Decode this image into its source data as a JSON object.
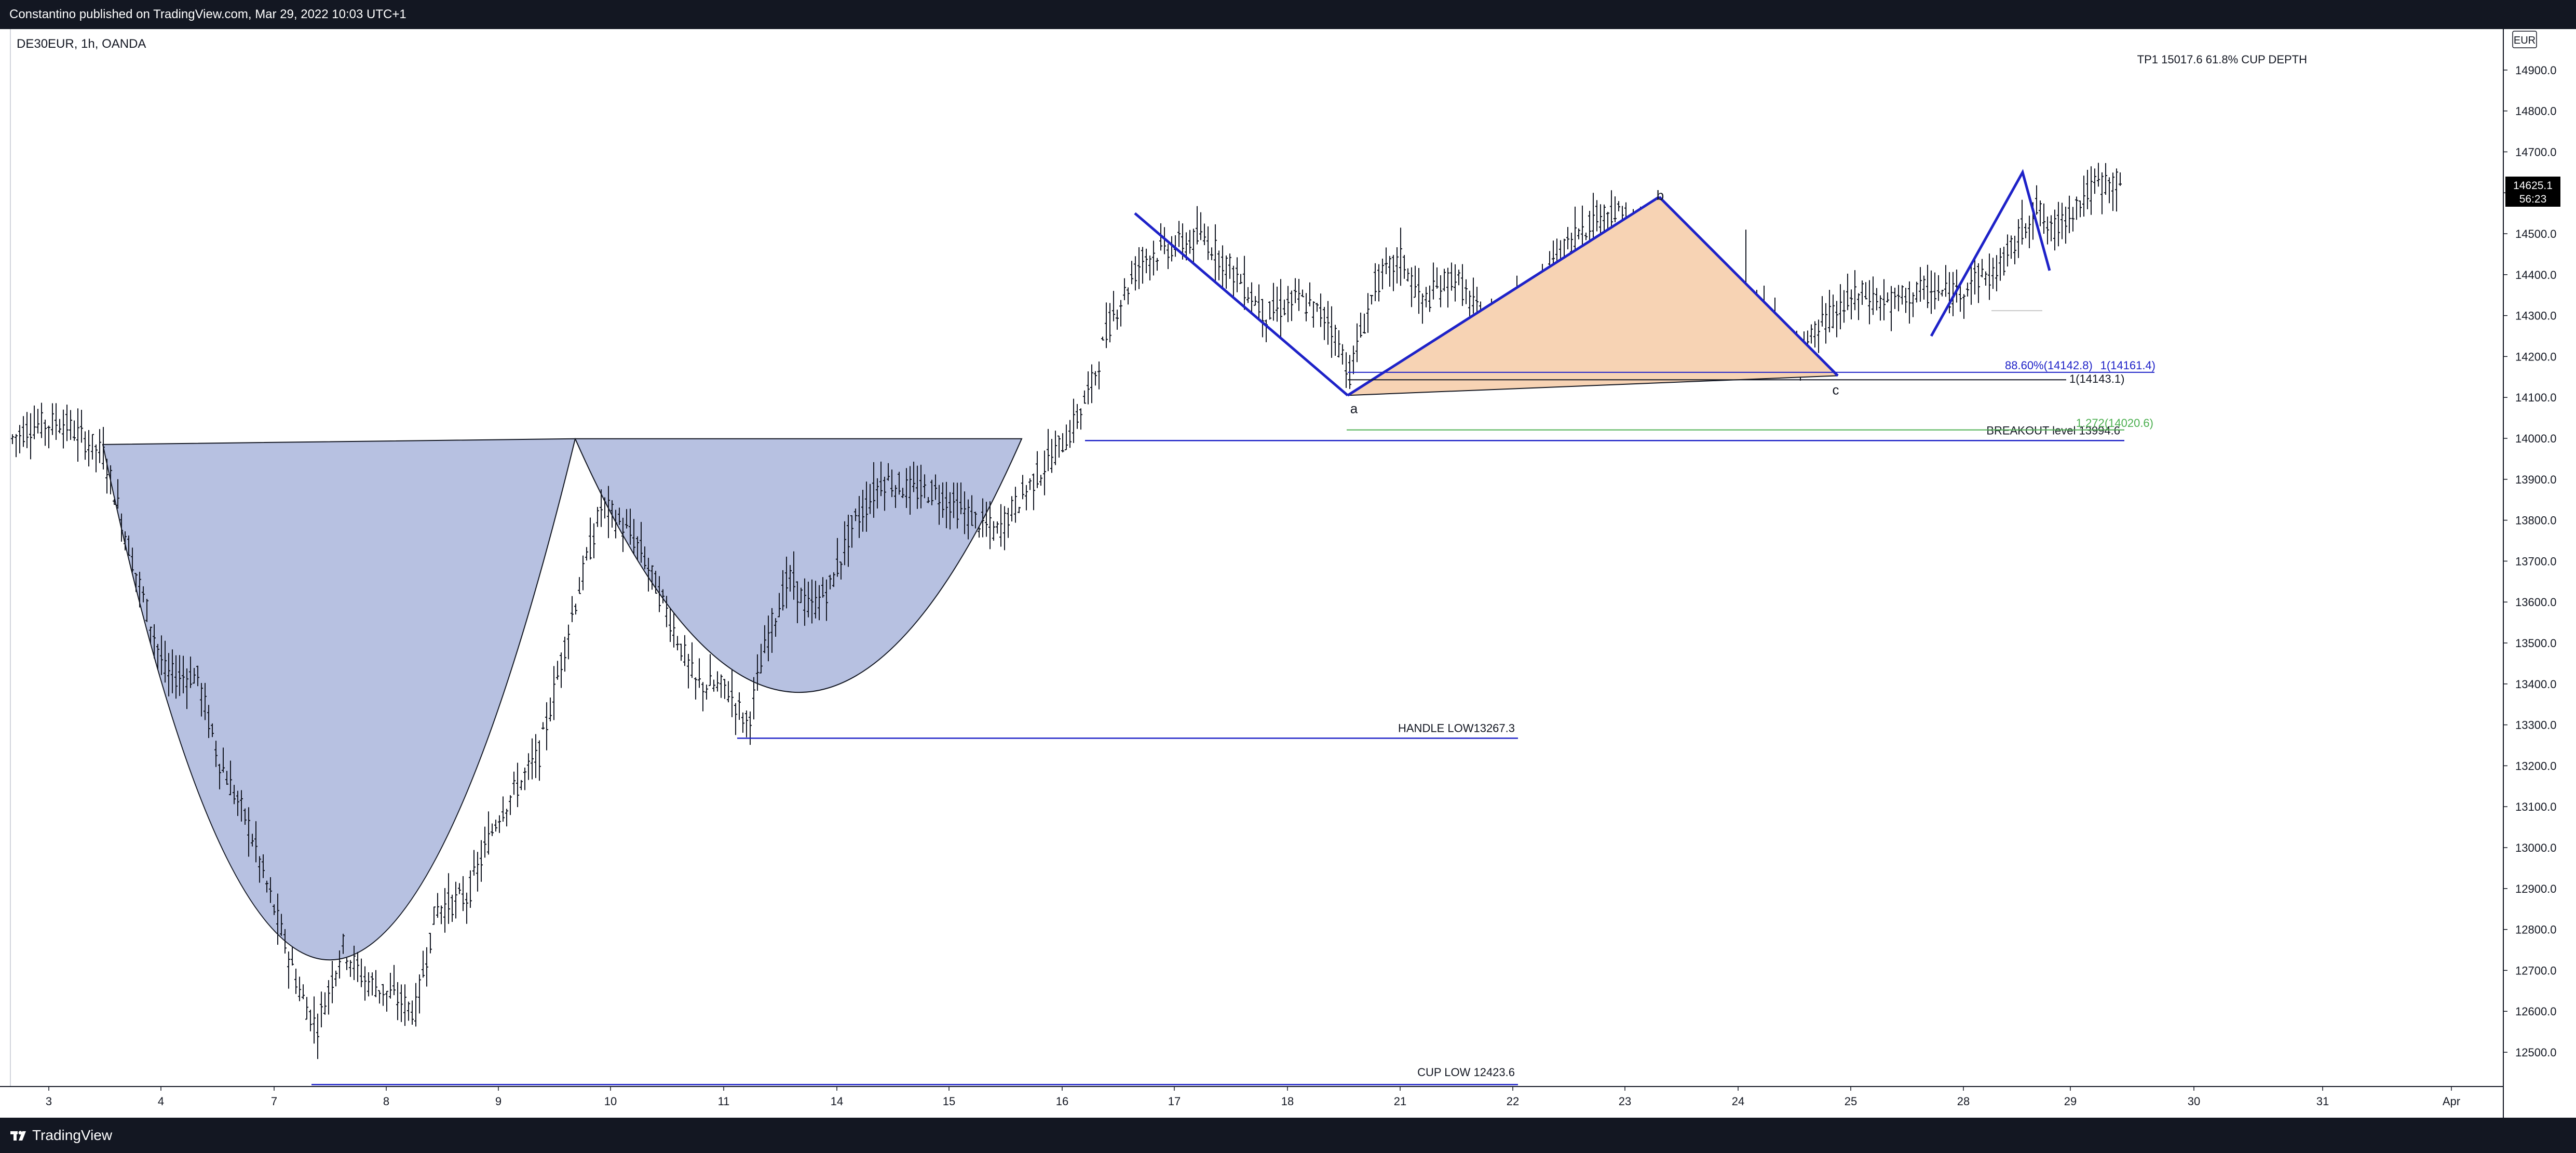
{
  "header": {
    "published_text": "Constantino published on TradingView.com, Mar 29, 2022 10:03 UTC+1"
  },
  "footer": {
    "brand": "TradingView",
    "logo_icon": "tradingview-logo-icon"
  },
  "colors": {
    "background": "#ffffff",
    "bar_dark": "#131722",
    "candle": "#131722",
    "pattern_fill": "#b7c1e1",
    "abc_line": "#1e22c8",
    "abc_fill": "#f7d3b4",
    "green_level": "#4caf50",
    "tp_line": "#cfe0f3",
    "label_bg": "#000000"
  },
  "chart_data": {
    "type": "candlestick",
    "title": "DE30EUR, 1h, OANDA",
    "currency": "EUR",
    "ylim": [
      12423.6,
      15017.6
    ],
    "y_ticks": [
      "12500.0",
      "12600.0",
      "12700.0",
      "12800.0",
      "12900.0",
      "13000.0",
      "13100.0",
      "13200.0",
      "13300.0",
      "13400.0",
      "13500.0",
      "13600.0",
      "13700.0",
      "13800.0",
      "13900.0",
      "14000.0",
      "14100.0",
      "14200.0",
      "14300.0",
      "14400.0",
      "14500.0",
      "14600.0",
      "14700.0",
      "14800.0",
      "14900.0"
    ],
    "x_ticks": [
      "3",
      "4",
      "7",
      "8",
      "9",
      "10",
      "11",
      "14",
      "15",
      "16",
      "17",
      "18",
      "21",
      "22",
      "23",
      "24",
      "25",
      "28",
      "29",
      "30",
      "31",
      "Apr"
    ],
    "last_price": "14625.1",
    "countdown": "56:23",
    "annotations": {
      "tp1": "TP1 15017.6 61.8% CUP DEPTH",
      "cup_low": "CUP LOW 12423.6",
      "handle_low": "HANDLE LOW13267.3",
      "breakout": "BREAKOUT level  13994.6",
      "fib_886": "88.60%(14142.8)",
      "fib_1": "1(14143.1)",
      "fib_ext": "1(14161.4)",
      "fib_green": "1.272(14020.6)",
      "wave_a": "a",
      "wave_b": "b",
      "wave_c": "c"
    },
    "series": [
      {
        "x": [
          "3",
          "4",
          "7",
          "8",
          "9",
          "10",
          "11",
          "14",
          "15",
          "16",
          "17",
          "18",
          "21",
          "22",
          "23",
          "24",
          "25",
          "28",
          "29"
        ],
        "close": [
          14000,
          13760,
          12520,
          12640,
          13080,
          13900,
          13380,
          13700,
          13900,
          14110,
          14460,
          14280,
          14150,
          14320,
          14560,
          14240,
          14220,
          14470,
          14625
        ]
      }
    ],
    "key_levels": {
      "tp1": 15017.6,
      "breakout": 13994.6,
      "handle_low": 13267.3,
      "cup_low": 12423.6,
      "wave_a": 14105,
      "wave_b": 14590,
      "wave_c": 14153
    }
  }
}
